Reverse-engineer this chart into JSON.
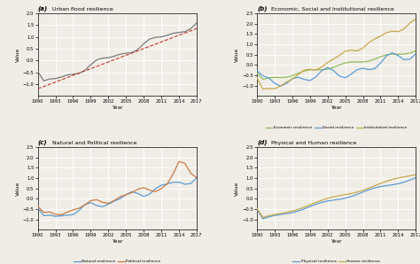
{
  "years": [
    1990,
    1991,
    1992,
    1993,
    1994,
    1995,
    1996,
    1997,
    1998,
    1999,
    2000,
    2001,
    2002,
    2003,
    2004,
    2005,
    2006,
    2007,
    2008,
    2009,
    2010,
    2011,
    2012,
    2013,
    2014,
    2015,
    2016,
    2017
  ],
  "year_ticks": [
    1990,
    1993,
    1996,
    1999,
    2002,
    2005,
    2008,
    2011,
    2014,
    2017
  ],
  "panel_bg": "#f0ede6",
  "fig_bg": "#f0ede6",
  "grid_color": "#ffffff",
  "title_a": " Urban flood resilience",
  "title_b": " Economic, Social and Institutional resilience",
  "title_c": " Natural and Political resilience",
  "title_d": " Physical and Human resilience",
  "label_a": "(a)",
  "label_b": "(b)",
  "label_c": "(c)",
  "label_d": "(d)",
  "color_urban": "#7a7a7a",
  "color_trend": "#c0392b",
  "color_economic": "#8fbc5a",
  "color_social": "#5b9bd5",
  "color_institutional": "#c8a84b",
  "color_natural": "#5b9bd5",
  "color_political": "#c87941",
  "color_physical": "#5b9bd5",
  "color_human": "#c8a84b",
  "ylim_a": [
    -1.5,
    2.0
  ],
  "ylim_b": [
    -1.5,
    2.5
  ],
  "ylim_c": [
    -1.5,
    2.5
  ],
  "ylim_d": [
    -1.5,
    2.5
  ],
  "yticks_a": [
    -1.0,
    -0.5,
    0.0,
    0.5,
    1.0,
    1.5,
    2.0
  ],
  "yticks_bcd": [
    -1.0,
    -0.5,
    0.0,
    0.5,
    1.0,
    1.5,
    2.0,
    2.5
  ]
}
